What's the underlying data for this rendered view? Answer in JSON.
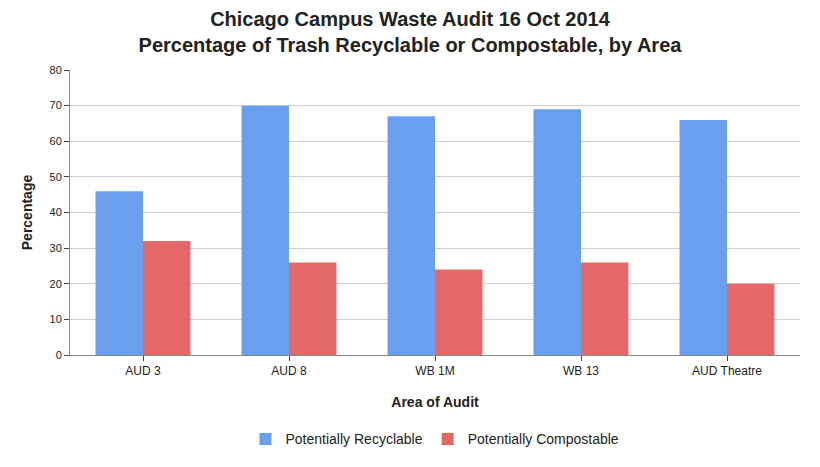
{
  "chart_data": {
    "type": "bar",
    "title": "Chicago Campus Waste Audit 16 Oct 2014\nPercentage of Trash Recyclable or Compostable, by Area",
    "x_label": "Area of Audit",
    "y_label": "Percentage",
    "categories": [
      "AUD 3",
      "AUD 8",
      "WB 1M",
      "WB 13",
      "AUD Theatre"
    ],
    "series": [
      {
        "name": "Potentially Recyclable",
        "color": "#6a9ff0",
        "values": [
          46,
          70,
          67,
          69,
          66
        ]
      },
      {
        "name": "Potentially Compostable",
        "color": "#e56868",
        "values": [
          32,
          26,
          24,
          26,
          20
        ]
      }
    ],
    "ylim": [
      0,
      80
    ],
    "yticks": [
      0,
      10,
      20,
      30,
      40,
      50,
      60,
      70,
      80
    ],
    "grid": true,
    "legend": "bottom"
  }
}
